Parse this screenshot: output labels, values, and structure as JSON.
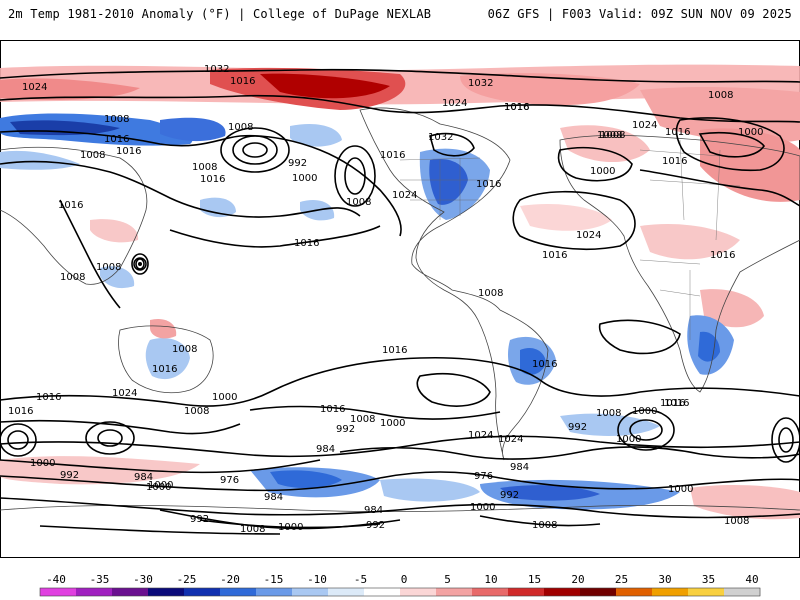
{
  "header": {
    "left_title": "2m Temp 1981-2010 Anomaly (°F) | College of DuPage NEXLAB",
    "right_title": "06Z GFS | F003 Valid: 09Z SUN NOV 09 2025"
  },
  "colorbar": {
    "ticks": [
      "-40",
      "-35",
      "-30",
      "-25",
      "-20",
      "-15",
      "-10",
      "-5",
      "0",
      "5",
      "10",
      "15",
      "20",
      "25",
      "30",
      "35",
      "40"
    ],
    "colors": [
      "#e040e0",
      "#a020c0",
      "#6a1090",
      "#0a0a7a",
      "#1030b0",
      "#2f6ad8",
      "#6a9ae8",
      "#a9c8f2",
      "#dceaf8",
      "#ffffff",
      "#fbd6d6",
      "#f3a3a3",
      "#e86a6a",
      "#d02a2a",
      "#a00000",
      "#700000",
      "#e06000",
      "#f0a000",
      "#f8d040",
      "#d0d0d0"
    ]
  },
  "map": {
    "isobar_labels": [
      {
        "text": "1032"
      },
      {
        "text": "1016"
      },
      {
        "text": "1032"
      },
      {
        "text": "1024"
      },
      {
        "text": "1008"
      },
      {
        "text": "1024"
      },
      {
        "text": "1008"
      },
      {
        "text": "1016"
      },
      {
        "text": "1016"
      },
      {
        "text": "1008"
      },
      {
        "text": "1016"
      },
      {
        "text": "992"
      },
      {
        "text": "1008"
      },
      {
        "text": "1008"
      },
      {
        "text": "1016"
      },
      {
        "text": "1000"
      },
      {
        "text": "1008"
      },
      {
        "text": "1016"
      },
      {
        "text": "1032"
      },
      {
        "text": "1016"
      },
      {
        "text": "1024"
      },
      {
        "text": "1008"
      },
      {
        "text": "1016"
      },
      {
        "text": "1024"
      },
      {
        "text": "1000"
      },
      {
        "text": "1008"
      },
      {
        "text": "1016"
      },
      {
        "text": "1000"
      },
      {
        "text": "1016"
      },
      {
        "text": "1016"
      },
      {
        "text": "1016"
      },
      {
        "text": "1024"
      },
      {
        "text": "1016"
      },
      {
        "text": "1008"
      },
      {
        "text": "1008"
      },
      {
        "text": "1016"
      },
      {
        "text": "1008"
      },
      {
        "text": "1016"
      },
      {
        "text": "1024"
      },
      {
        "text": "1016"
      },
      {
        "text": "1016"
      },
      {
        "text": "1008"
      },
      {
        "text": "1000"
      },
      {
        "text": "1016"
      },
      {
        "text": "1016"
      },
      {
        "text": "1008"
      },
      {
        "text": "1000"
      },
      {
        "text": "1024"
      },
      {
        "text": "1016"
      },
      {
        "text": "1008"
      },
      {
        "text": "1000"
      },
      {
        "text": "1000"
      },
      {
        "text": "1016"
      },
      {
        "text": "1008"
      },
      {
        "text": "1000"
      },
      {
        "text": "992"
      },
      {
        "text": "992"
      },
      {
        "text": "984"
      },
      {
        "text": "1024"
      },
      {
        "text": "1000"
      },
      {
        "text": "992"
      },
      {
        "text": "984"
      },
      {
        "text": "1000"
      },
      {
        "text": "976"
      },
      {
        "text": "984"
      },
      {
        "text": "976"
      },
      {
        "text": "984"
      },
      {
        "text": "992"
      },
      {
        "text": "1000"
      },
      {
        "text": "992"
      },
      {
        "text": "984"
      },
      {
        "text": "992"
      },
      {
        "text": "1008"
      },
      {
        "text": "1000"
      },
      {
        "text": "1000"
      },
      {
        "text": "1008"
      },
      {
        "text": "1008"
      },
      {
        "text": "1016"
      }
    ]
  }
}
